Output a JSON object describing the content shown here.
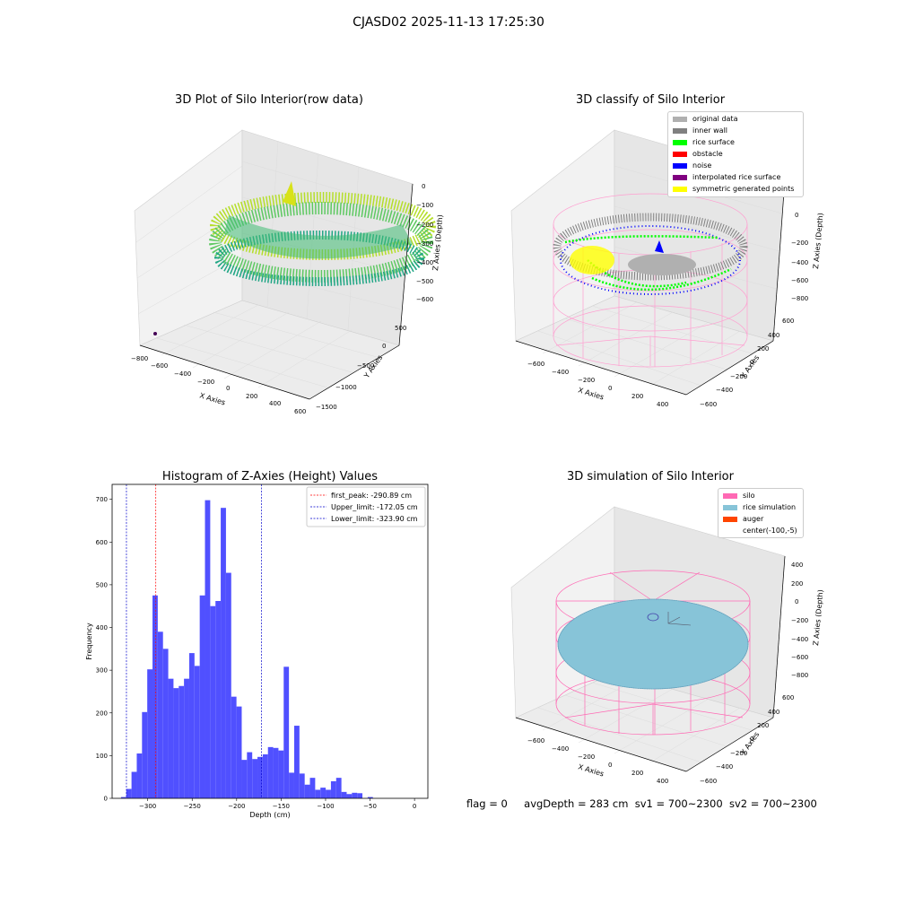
{
  "figure_title": "CJASD02 2025-11-13 17:25:30",
  "status": {
    "flag": "flag = 0",
    "avg_depth": "avgDepth = 283 cm",
    "sv1": "sv1 = 700~2300",
    "sv2": "sv2 = 700~2300"
  },
  "colors": {
    "histogram_bar": "#5050ff",
    "first_peak_line": "#ff0000",
    "limit_lines": "#0000cc",
    "silo_wire": "#ff69b4",
    "rice_sim": "#87c4d8",
    "auger": "#ff4500",
    "viridis_low": "#21908d",
    "viridis_high": "#b5de2b",
    "classify_original": "#b0b0b0",
    "classify_inner_wall": "#808080",
    "classify_rice_surface": "#00ff00",
    "classify_obstacle": "#ff0000",
    "classify_noise": "#0000ff",
    "classify_interpolated": "#800080",
    "classify_symmetric": "#ffff00"
  },
  "panels": {
    "raw": {
      "title": "3D Plot of Silo Interior(row data)",
      "xlabel": "X Axies",
      "ylabel": "Y Axies",
      "zlabel": "Z Axies (Depth)",
      "xticks": [
        "−800",
        "−600",
        "−400",
        "−200",
        "0",
        "200",
        "400",
        "600"
      ],
      "yticks": [
        "−1500",
        "−1000",
        "−500",
        "0",
        "500"
      ],
      "zticks": [
        "0",
        "−100",
        "−200",
        "−300",
        "−400",
        "−500",
        "−600"
      ]
    },
    "classify": {
      "title": "3D classify of Silo Interior",
      "xlabel": "X Axies",
      "ylabel": "Y Axies",
      "zlabel": "Z Axies (Depth)",
      "xticks": [
        "−600",
        "−400",
        "−200",
        "0",
        "200",
        "400"
      ],
      "yticks": [
        "−600",
        "−400",
        "−200",
        "0",
        "200",
        "400",
        "600"
      ],
      "zticks": [
        "200",
        "0",
        "−200",
        "−400",
        "−600",
        "−800"
      ],
      "legend": [
        "original data",
        "inner wall",
        "rice surface",
        "obstacle",
        "noise",
        "interpolated rice surface",
        "symmetric generated points"
      ]
    },
    "simulation": {
      "title": "3D simulation of Silo Interior",
      "xlabel": "X Axies",
      "ylabel": "Y Axies",
      "zlabel": "Z Axies (Depth)",
      "xticks": [
        "−600",
        "−400",
        "−200",
        "0",
        "200",
        "400"
      ],
      "yticks": [
        "−600",
        "−400",
        "−200",
        "0",
        "200",
        "400",
        "600"
      ],
      "zticks": [
        "400",
        "200",
        "0",
        "−200",
        "−400",
        "−600",
        "−800"
      ],
      "legend": [
        "silo",
        "rice simulation",
        "auger",
        "center(-100,-5)"
      ]
    }
  },
  "chart_data": [
    {
      "type": "bar",
      "title": "Histogram of Z-Axies (Height) Values",
      "xlabel": "Depth (cm)",
      "ylabel": "Frequency",
      "xlim": [
        -340,
        15
      ],
      "ylim": [
        0,
        735
      ],
      "xticks": [
        "−300",
        "−250",
        "−200",
        "−150",
        "−100",
        "−50",
        "0"
      ],
      "xtick_values": [
        -300,
        -250,
        -200,
        -150,
        -100,
        -50,
        0
      ],
      "yticks": [
        "0",
        "100",
        "200",
        "300",
        "400",
        "500",
        "600",
        "700"
      ],
      "ytick_values": [
        0,
        100,
        200,
        300,
        400,
        500,
        600,
        700
      ],
      "bin_start": -330,
      "bin_width": 5.9,
      "values": [
        3,
        22,
        62,
        105,
        202,
        302,
        475,
        390,
        350,
        280,
        258,
        263,
        280,
        340,
        310,
        475,
        698,
        450,
        462,
        680,
        528,
        238,
        215,
        90,
        108,
        92,
        97,
        103,
        120,
        118,
        112,
        308,
        60,
        170,
        58,
        32,
        48,
        20,
        25,
        20,
        40,
        48,
        15,
        10,
        13,
        12,
        0,
        3
      ],
      "vlines": [
        {
          "label": "first_peak: -290.89 cm",
          "x": -290.89,
          "color": "#ff0000"
        },
        {
          "label": "Upper_limit: -172.05 cm",
          "x": -172.05,
          "color": "#0000cc"
        },
        {
          "label": "Lower_limit: -323.90 cm",
          "x": -323.9,
          "color": "#0000cc"
        }
      ],
      "legend_position": "top-right"
    }
  ]
}
